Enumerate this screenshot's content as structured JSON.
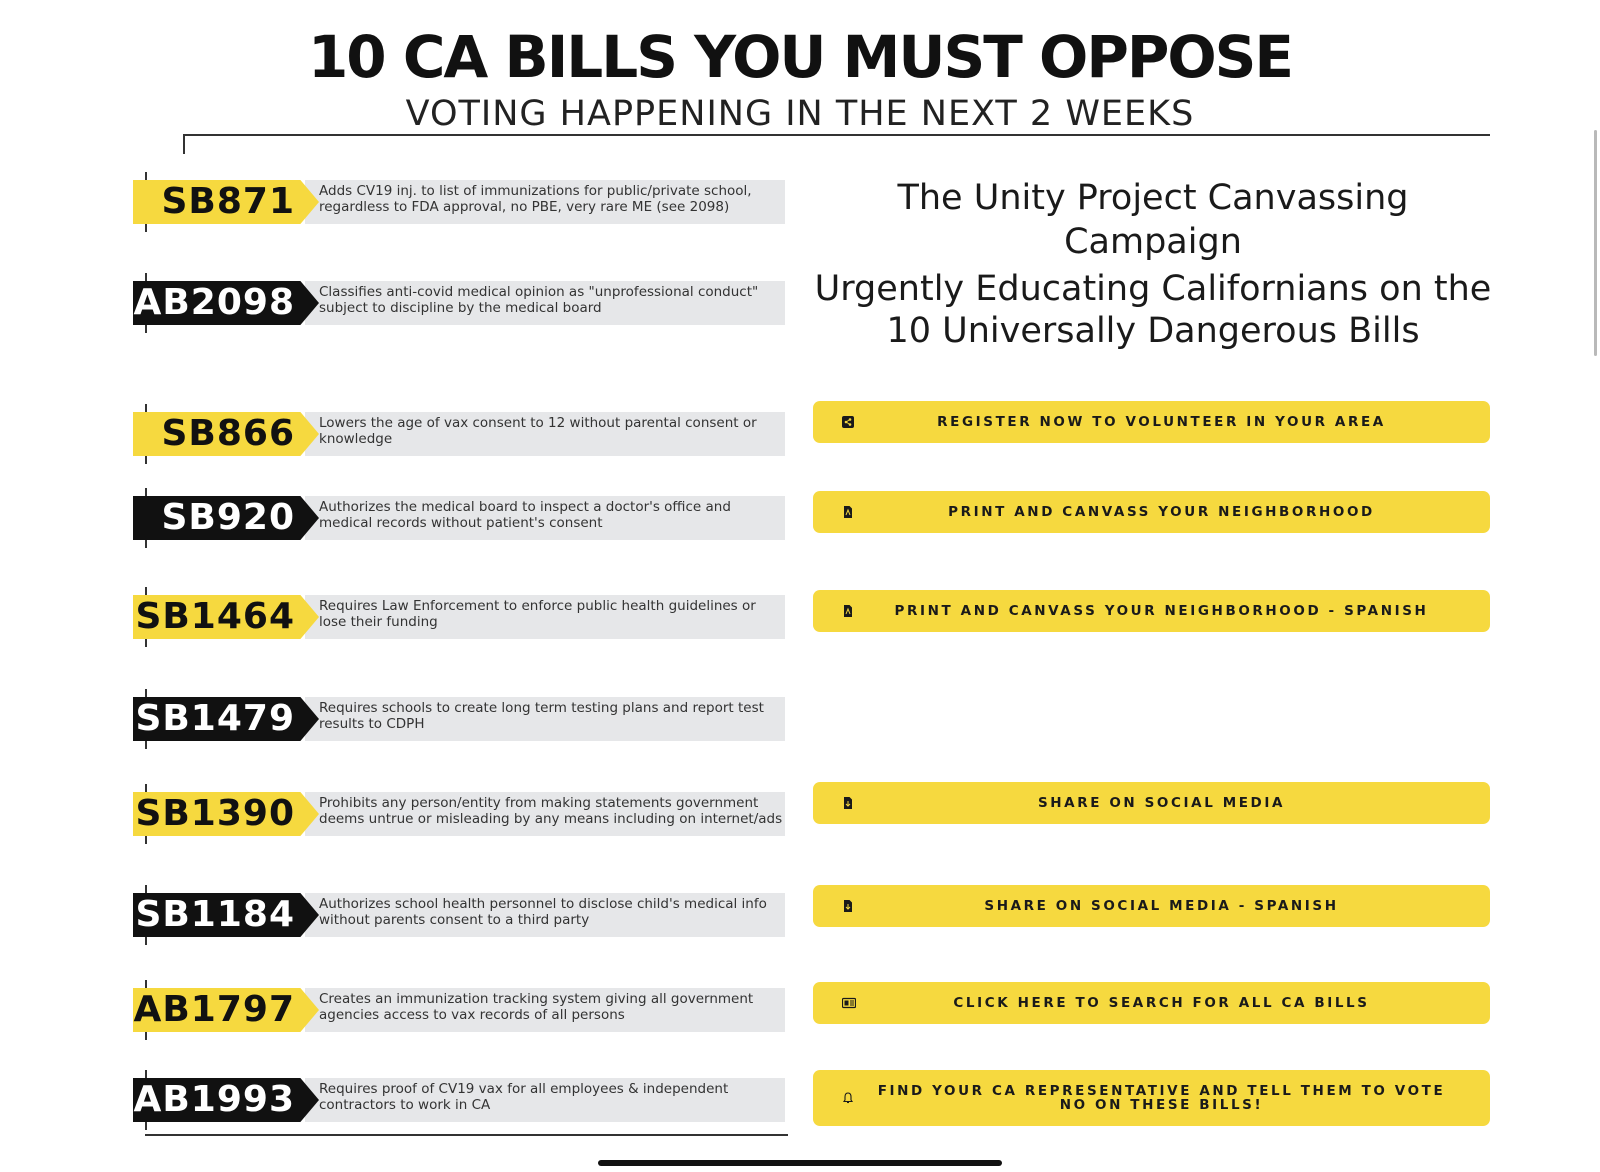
{
  "header": {
    "title": "10 CA BILLS YOU MUST OPPOSE",
    "subtitle": "VOTING HAPPENING IN THE NEXT 2 WEEKS"
  },
  "bills": [
    {
      "code": "SB871",
      "color": "#f6d93f",
      "description": "Adds CV19 inj. to list of immunizations for public/private school, regardless to FDA approval, no PBE, very rare ME (see 2098)"
    },
    {
      "code": "AB2098",
      "color": "#111111",
      "description": "Classifies anti-covid medical opinion as \"unprofessional conduct\" subject to discipline by the medical board"
    },
    {
      "code": "SB866",
      "color": "#f6d93f",
      "description": "Lowers the age of vax consent to 12 without parental consent or knowledge"
    },
    {
      "code": "SB920",
      "color": "#111111",
      "description": "Authorizes the medical board to inspect a doctor's office and medical records without patient's consent"
    },
    {
      "code": "SB1464",
      "color": "#f6d93f",
      "description": "Requires Law Enforcement to enforce public health guidelines or lose their funding"
    },
    {
      "code": "SB1479",
      "color": "#111111",
      "description": "Requires schools to create long term testing plans and report test results to CDPH"
    },
    {
      "code": "SB1390",
      "color": "#f6d93f",
      "description": "Prohibits any person/entity from making statements government deems untrue or misleading by any means including on internet/ads"
    },
    {
      "code": "SB1184",
      "color": "#111111",
      "description": "Authorizes school health personnel to disclose child's medical info without parents consent to a third party"
    },
    {
      "code": "AB1797",
      "color": "#f6d93f",
      "description": "Creates an immunization tracking system giving all government agencies access to vax records of all persons"
    },
    {
      "code": "AB1993",
      "color": "#111111",
      "description": "Requires proof of CV19 vax for all employees & independent contractors to work in CA"
    }
  ],
  "campaign": {
    "title": "The Unity Project Canvassing Campaign",
    "subtitle": "Urgently Educating Californians on the 10 Universally Dangerous Bills"
  },
  "actions": [
    {
      "label": "REGISTER NOW TO VOLUNTEER IN YOUR AREA",
      "icon": "share-icon"
    },
    {
      "label": "PRINT AND CANVASS YOUR NEIGHBORHOOD",
      "icon": "pdf-file-icon"
    },
    {
      "label": "PRINT AND CANVASS YOUR NEIGHBORHOOD - SPANISH",
      "icon": "pdf-file-icon"
    },
    {
      "label": "SHARE ON SOCIAL MEDIA",
      "icon": "download-file-icon"
    },
    {
      "label": "SHARE ON SOCIAL MEDIA - SPANISH",
      "icon": "download-file-icon"
    },
    {
      "label": "CLICK HERE TO SEARCH FOR ALL CA BILLS",
      "icon": "newspaper-icon"
    },
    {
      "label": "FIND YOUR CA REPRESENTATIVE AND TELL THEM TO VOTE NO ON THESE BILLS!",
      "icon": "bell-icon"
    }
  ],
  "colors": {
    "accent_yellow": "#f6d93f",
    "label_black": "#111111",
    "desc_gray": "#e6e7e9"
  }
}
